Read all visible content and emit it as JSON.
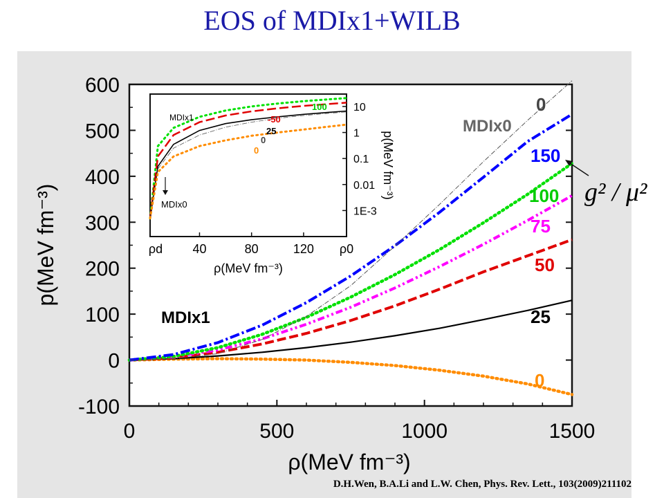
{
  "page": {
    "title": "EOS of MDIx1+WILB",
    "citation": "D.H.Wen, B.A.Li and L.W. Chen, Phys. Rev. Lett., 103(2009)211102"
  },
  "chart_data": [
    {
      "type": "line",
      "title": "",
      "xlabel": "ρ(MeV fm⁻³)",
      "ylabel": "p(MeV fm⁻³)",
      "xlim": [
        0,
        1500
      ],
      "ylim": [
        -100,
        600
      ],
      "xticks": [
        "0",
        "500",
        "1000",
        "1500"
      ],
      "yticks": [
        "-100",
        "0",
        "100",
        "200",
        "300",
        "400",
        "500",
        "600"
      ],
      "grid": false,
      "annotations": {
        "model_label": "MDIx1",
        "reference_label": "MDIx0",
        "parameter_label": "g² / μ²"
      },
      "series": [
        {
          "name": "0",
          "label_color": "#ff8c00",
          "color": "#ff8c00",
          "style": "dotted",
          "x": [
            0,
            150,
            300,
            450,
            600,
            750,
            900,
            1050,
            1200,
            1350,
            1500
          ],
          "y": [
            0,
            2,
            3,
            2,
            0,
            -5,
            -12,
            -22,
            -35,
            -52,
            -75
          ]
        },
        {
          "name": "25",
          "label_color": "#000000",
          "color": "#000000",
          "style": "solid",
          "x": [
            0,
            150,
            300,
            450,
            600,
            750,
            900,
            1050,
            1200,
            1350,
            1500
          ],
          "y": [
            0,
            3,
            9,
            17,
            27,
            39,
            53,
            69,
            88,
            108,
            130
          ]
        },
        {
          "name": "50",
          "label_color": "#e00000",
          "color": "#e00000",
          "style": "dashed",
          "x": [
            0,
            150,
            300,
            450,
            600,
            750,
            900,
            1050,
            1200,
            1350,
            1500
          ],
          "y": [
            0,
            5,
            17,
            35,
            58,
            86,
            118,
            154,
            192,
            227,
            262
          ]
        },
        {
          "name": "75",
          "label_color": "#ff00ff",
          "color": "#ff00ff",
          "style": "dash-dot-dot",
          "x": [
            0,
            150,
            300,
            450,
            600,
            750,
            900,
            1050,
            1200,
            1350,
            1500
          ],
          "y": [
            0,
            7,
            22,
            46,
            78,
            115,
            157,
            203,
            252,
            304,
            358
          ]
        },
        {
          "name": "100",
          "label_color": "#00cc00",
          "color": "#00e000",
          "style": "dotted",
          "x": [
            0,
            150,
            300,
            450,
            600,
            750,
            900,
            1050,
            1200,
            1350,
            1500
          ],
          "y": [
            0,
            8,
            27,
            56,
            93,
            137,
            186,
            240,
            299,
            361,
            428
          ]
        },
        {
          "name": "150",
          "label_color": "#0000ff",
          "color": "#0000ff",
          "style": "dash-dot",
          "x": [
            0,
            150,
            300,
            450,
            600,
            750,
            900,
            1050,
            1200,
            1350,
            1500
          ],
          "y": [
            0,
            12,
            38,
            76,
            125,
            183,
            249,
            321,
            398,
            476,
            535
          ]
        },
        {
          "name": "0",
          "label_color": "#444444",
          "color": "#555555",
          "style": "dash-dot-thin",
          "x": [
            0,
            150,
            300,
            450,
            600,
            750,
            900,
            1050,
            1200,
            1350,
            1500
          ],
          "y": [
            0,
            3,
            14,
            45,
            95,
            162,
            248,
            338,
            432,
            522,
            608
          ]
        }
      ]
    },
    {
      "type": "line",
      "title": "",
      "xlabel": "ρ(MeV fm⁻³)",
      "ylabel": "p(MeV fm⁻³)",
      "xticks": [
        "ρd",
        "40",
        "80",
        "120",
        "ρ0"
      ],
      "yticks_right": [
        "10",
        "1",
        "0.1",
        "0.01",
        "1E-3"
      ],
      "yscale": "log",
      "ylim": [
        0.0001,
        30
      ],
      "grid": false,
      "annotations": {
        "model_label": "MDIx1",
        "reference_label": "MDIx0"
      },
      "series": [
        {
          "name": "100",
          "label_color": "#00cc00",
          "color": "#00e000",
          "style": "dotted",
          "x": [
            2,
            8,
            20,
            40,
            60,
            80,
            100,
            120,
            140,
            153
          ],
          "y": [
            0.0005,
            0.3,
            1.5,
            4,
            7,
            10,
            13,
            16,
            19,
            21
          ]
        },
        {
          "name": "-50",
          "label_color": "#e00000",
          "color": "#e00000",
          "style": "dashed",
          "x": [
            2,
            8,
            20,
            40,
            60,
            80,
            100,
            120,
            140,
            153
          ],
          "y": [
            0.0005,
            0.12,
            0.8,
            2.5,
            4.5,
            6.5,
            8.5,
            10.5,
            12.5,
            14
          ]
        },
        {
          "name": "25",
          "label_color": "#000000",
          "color": "#000000",
          "style": "solid",
          "x": [
            2,
            8,
            20,
            40,
            60,
            80,
            100,
            120,
            140,
            153
          ],
          "y": [
            0.0005,
            0.05,
            0.35,
            1.2,
            2.2,
            3.1,
            4,
            5,
            6,
            6.7
          ]
        },
        {
          "name": "0",
          "label_color": "#444444",
          "color": "#555555",
          "style": "dash-dot-thin",
          "x": [
            2,
            8,
            20,
            40,
            60,
            80,
            100,
            120,
            140,
            153
          ],
          "y": [
            0.0005,
            0.04,
            0.25,
            0.8,
            1.6,
            2.5,
            3.5,
            4.5,
            5.5,
            6.2
          ]
        },
        {
          "name": "0",
          "label_color": "#ff8c00",
          "color": "#ff8c00",
          "style": "dotted",
          "x": [
            2,
            8,
            20,
            40,
            60,
            80,
            100,
            120,
            140,
            153
          ],
          "y": [
            0.0005,
            0.03,
            0.12,
            0.3,
            0.5,
            0.75,
            1.0,
            1.3,
            1.7,
            2.0
          ]
        }
      ]
    }
  ]
}
